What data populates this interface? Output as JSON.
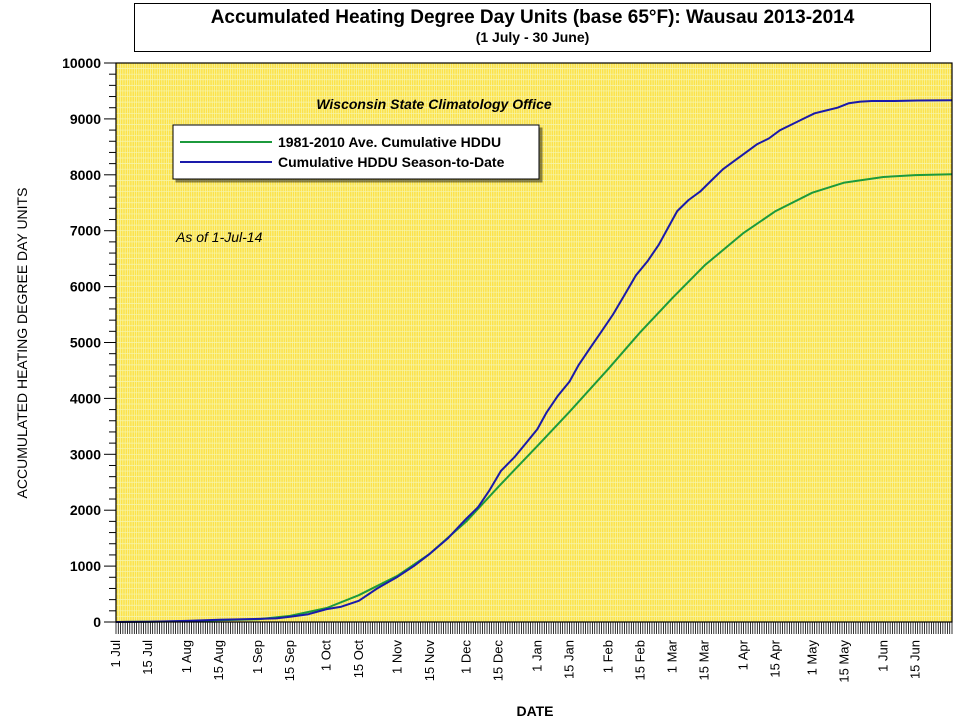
{
  "title": "Accumulated Heating Degree Day Units (base 65°F): Wausau 2013-2014",
  "subtitle": "(1 July - 30 June)",
  "annotation_source": "Wisconsin State Climatology Office",
  "annotation_asof": "As of 1-Jul-14",
  "colors": {
    "plot_background": "#fce24a",
    "grid": "#f6f6b0",
    "average_line": "#1c9a3c",
    "season_line": "#1a1aaa"
  },
  "chart_data": {
    "type": "line",
    "title": "Accumulated Heating Degree Day Units (base 65°F): Wausau 2013-2014",
    "subtitle": "(1 July - 30 June)",
    "xlabel": "DATE",
    "ylabel": "ACCUMULATED HEATING DEGREE DAY UNITS",
    "ylim": [
      0,
      10000
    ],
    "xlim": [
      0,
      365
    ],
    "yticks": [
      0,
      1000,
      2000,
      3000,
      4000,
      5000,
      6000,
      7000,
      8000,
      9000,
      10000
    ],
    "xtick_labels": [
      {
        "day": 0,
        "label": "1 Jul"
      },
      {
        "day": 14,
        "label": "15 Jul"
      },
      {
        "day": 31,
        "label": "1 Aug"
      },
      {
        "day": 45,
        "label": "15 Aug"
      },
      {
        "day": 62,
        "label": "1 Sep"
      },
      {
        "day": 76,
        "label": "15 Sep"
      },
      {
        "day": 92,
        "label": "1 Oct"
      },
      {
        "day": 106,
        "label": "15 Oct"
      },
      {
        "day": 123,
        "label": "1 Nov"
      },
      {
        "day": 137,
        "label": "15 Nov"
      },
      {
        "day": 153,
        "label": "1 Dec"
      },
      {
        "day": 167,
        "label": "15 Dec"
      },
      {
        "day": 184,
        "label": "1 Jan"
      },
      {
        "day": 198,
        "label": "15 Jan"
      },
      {
        "day": 215,
        "label": "1 Feb"
      },
      {
        "day": 229,
        "label": "15 Feb"
      },
      {
        "day": 243,
        "label": "1 Mar"
      },
      {
        "day": 257,
        "label": "15 Mar"
      },
      {
        "day": 274,
        "label": "1 Apr"
      },
      {
        "day": 288,
        "label": "15 Apr"
      },
      {
        "day": 304,
        "label": "1 May"
      },
      {
        "day": 318,
        "label": "15 May"
      },
      {
        "day": 335,
        "label": "1 Jun"
      },
      {
        "day": 349,
        "label": "15 Jun"
      }
    ],
    "grid": true,
    "legend_position": "upper-left",
    "series": [
      {
        "name": "1981-2010 Ave. Cumulative HDDU",
        "color": "#1c9a3c",
        "x": [
          0,
          14,
          31,
          45,
          62,
          76,
          92,
          106,
          123,
          137,
          153,
          167,
          184,
          198,
          215,
          229,
          243,
          257,
          274,
          288,
          304,
          318,
          335,
          349,
          365
        ],
        "y": [
          0,
          5,
          15,
          30,
          50,
          110,
          250,
          480,
          830,
          1220,
          1800,
          2420,
          3150,
          3760,
          4530,
          5190,
          5800,
          6380,
          6960,
          7350,
          7680,
          7860,
          7960,
          7995,
          8010
        ]
      },
      {
        "name": "Cumulative HDDU Season-to-Date",
        "color": "#1a1aaa",
        "x": [
          0,
          14,
          31,
          45,
          62,
          70,
          76,
          84,
          92,
          98,
          106,
          114,
          123,
          130,
          137,
          145,
          153,
          158,
          163,
          168,
          174,
          179,
          184,
          188,
          193,
          198,
          202,
          207,
          212,
          217,
          222,
          227,
          232,
          237,
          241,
          245,
          250,
          255,
          260,
          265,
          270,
          275,
          280,
          285,
          290,
          295,
          300,
          305,
          310,
          315,
          320,
          325,
          330,
          340,
          350,
          365
        ],
        "y": [
          0,
          5,
          20,
          40,
          55,
          65,
          95,
          140,
          230,
          270,
          380,
          600,
          810,
          1000,
          1220,
          1500,
          1850,
          2050,
          2350,
          2700,
          2950,
          3200,
          3450,
          3750,
          4050,
          4300,
          4600,
          4900,
          5200,
          5500,
          5850,
          6200,
          6450,
          6750,
          7050,
          7350,
          7550,
          7700,
          7900,
          8100,
          8250,
          8400,
          8550,
          8650,
          8800,
          8900,
          9000,
          9100,
          9150,
          9200,
          9280,
          9310,
          9320,
          9320,
          9330,
          9335
        ]
      }
    ]
  }
}
